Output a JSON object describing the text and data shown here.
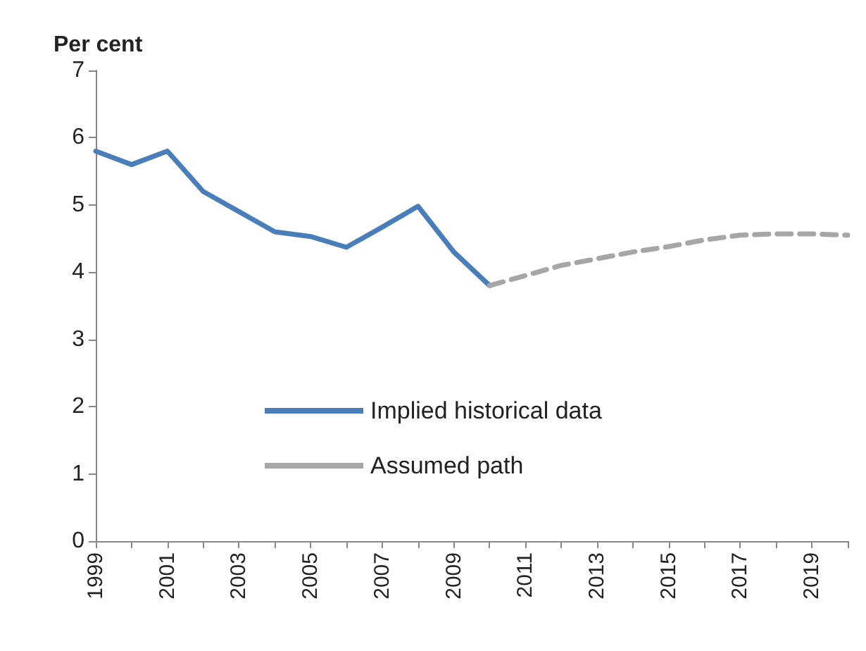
{
  "chart_data": {
    "type": "line",
    "ylabel": "Per cent",
    "categories": [
      "1999",
      null,
      "2001",
      null,
      "2003",
      null,
      "2005",
      null,
      "2007",
      null,
      "2009",
      null,
      "2011",
      null,
      "2013",
      null,
      "2015",
      null,
      "2017",
      null,
      "2019",
      null
    ],
    "series": [
      {
        "name": "Implied historical data",
        "color": "#4a7ebb",
        "line_style": "solid",
        "values": [
          5.8,
          5.6,
          5.8,
          5.2,
          4.9,
          4.6,
          4.53,
          4.37,
          4.67,
          4.98,
          4.3,
          3.8,
          null,
          null,
          null,
          null,
          null,
          null,
          null,
          null,
          null,
          null
        ]
      },
      {
        "name": "Assumed path",
        "color": "#a6a6a6",
        "line_style": "dashed",
        "values": [
          null,
          null,
          null,
          null,
          null,
          null,
          null,
          null,
          null,
          null,
          null,
          3.8,
          3.95,
          4.1,
          4.2,
          4.3,
          4.38,
          4.48,
          4.55,
          4.57,
          4.57,
          4.55
        ]
      }
    ],
    "ylim": [
      0,
      7
    ],
    "yticks": [
      0,
      1,
      2,
      3,
      4,
      5,
      6,
      7
    ],
    "grid": false,
    "legend": "center",
    "marker": "none"
  }
}
